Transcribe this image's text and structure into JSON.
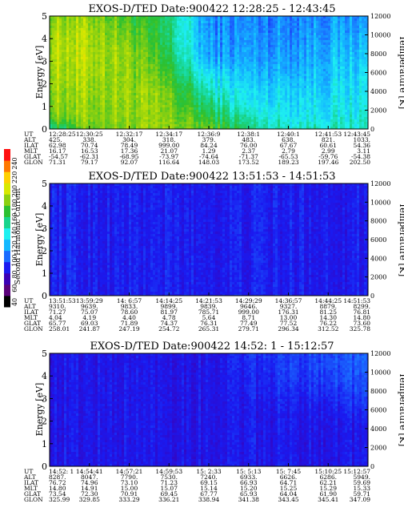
{
  "colorbar": {
    "label": "Second Harmonic Current",
    "ticks": [
      "40",
      "60",
      "80",
      "100",
      "120",
      "140",
      "160",
      "180",
      "200",
      "220",
      "240"
    ],
    "colors": [
      "#000000",
      "#5a007a",
      "#3b00b5",
      "#1a1af0",
      "#1a6cff",
      "#14b8ff",
      "#1ef0f0",
      "#18d48c",
      "#2cc030",
      "#8cd010",
      "#d8e800",
      "#ffd000",
      "#ff7800",
      "#ff1010"
    ]
  },
  "row_labels": [
    "UT",
    "ALT",
    "ILAT",
    "MLT",
    "GLAT",
    "GLON"
  ],
  "panels": [
    {
      "title": "EXOS-D/TED  Date:900422  12:28:25 - 12:43:45",
      "ylabel": "Energy [eV]",
      "y2label": "Temperature [K]",
      "yticks": [
        "0",
        "1",
        "2",
        "3",
        "4",
        "5"
      ],
      "y2ticks": [
        "0",
        "2000",
        "4000",
        "6000",
        "8000",
        "10000",
        "12000"
      ],
      "columns": [
        [
          "12:28:25",
          "425.",
          "62.98",
          "16.17",
          "-54.57",
          "71.31"
        ],
        [
          "12:30:25",
          "338.",
          "70.74",
          "16.53",
          "-62.31",
          "79.17"
        ],
        [
          "12:32:17",
          "304.",
          "78.49",
          "17.36",
          "-68.95",
          "92.07"
        ],
        [
          "12:34:17",
          "318.",
          "999.00",
          "21.07",
          "-73.97",
          "116.64"
        ],
        [
          "12:36:9",
          "379.",
          "84.24",
          "1.29",
          "-74.64",
          "148.03"
        ],
        [
          "12:38:1",
          "483.",
          "76.00",
          "2.37",
          "-71.37",
          "173.52"
        ],
        [
          "12:40:1",
          "638.",
          "67.67",
          "2.79",
          "-65.53",
          "189.23"
        ],
        [
          "12:41:53",
          "821.",
          "60.61",
          "2.99",
          "-59.76",
          "197.46"
        ],
        [
          "12:43:45",
          "1033.",
          "54.36",
          "3.11",
          "-54.38",
          "202.50"
        ]
      ]
    },
    {
      "title": "EXOS-D/TED  Date:900422  13:51:53 - 14:51:53",
      "ylabel": "Energy [eV]",
      "y2label": "Temperature [K]",
      "yticks": [
        "0",
        "1",
        "2",
        "3",
        "4",
        "5"
      ],
      "y2ticks": [
        "0",
        "2000",
        "4000",
        "6000",
        "8000",
        "10000",
        "12000"
      ],
      "columns": [
        [
          "13:51:53",
          "9310.",
          "71.27",
          "4.04",
          "65.77",
          "258.01"
        ],
        [
          "13:59:29",
          "9639.",
          "75.07",
          "4.19",
          "69.03",
          "241.87"
        ],
        [
          "14: 6:57",
          "9833.",
          "78.60",
          "4.40",
          "71.89",
          "247.19"
        ],
        [
          "14:14:25",
          "9899.",
          "81.97",
          "4.78",
          "74.37",
          "254.72"
        ],
        [
          "14:21:53",
          "9839.",
          "785.71",
          "5.64",
          "76.31",
          "265.31"
        ],
        [
          "14:29:29",
          "9646.",
          "999.00",
          "8.71",
          "77.49",
          "279.71"
        ],
        [
          "14:36:57",
          "9327.",
          "176.31",
          "13.00",
          "77.52",
          "296.34"
        ],
        [
          "14:44:25",
          "8879.",
          "81.25",
          "14.30",
          "76.22",
          "312.52"
        ],
        [
          "14:51:53",
          "8299.",
          "76.81",
          "14.80",
          "73.60",
          "325.78"
        ]
      ]
    },
    {
      "title": "EXOS-D/TED  Date:900422  14:52: 1 - 15:12:57",
      "ylabel": "Energy [eV]",
      "y2label": "Temperature [K]",
      "yticks": [
        "0",
        "1",
        "2",
        "3",
        "4",
        "5"
      ],
      "y2ticks": [
        "0",
        "2000",
        "4000",
        "6000",
        "8000",
        "10000",
        "12000"
      ],
      "columns": [
        [
          "14:52: 1",
          "8287.",
          "76.72",
          "14.80",
          "73.54",
          "325.99"
        ],
        [
          "14:54:41",
          "8047.",
          "74.96",
          "14.91",
          "72.30",
          "329.85"
        ],
        [
          "14:57:21",
          "7790.",
          "73.10",
          "15.00",
          "70.91",
          "333.29"
        ],
        [
          "14:59:53",
          "7530.",
          "71.23",
          "15.07",
          "69.45",
          "336.21"
        ],
        [
          "15: 2:33",
          "7240.",
          "69.15",
          "15.14",
          "67.77",
          "338.94"
        ],
        [
          "15: 5:13",
          "6933.",
          "66.93",
          "15.20",
          "65.93",
          "341.38"
        ],
        [
          "15: 7:45",
          "6626.",
          "64.71",
          "15.25",
          "64.04",
          "343.45"
        ],
        [
          "15:10:25",
          "6286.",
          "62.21",
          "15.29",
          "61.90",
          "345.41"
        ],
        [
          "15:12:57",
          "5949.",
          "59.69",
          "15.33",
          "59.71",
          "347.09"
        ]
      ]
    }
  ],
  "chart_data": [
    {
      "type": "heatmap",
      "title": "EXOS-D/TED  Date:900422  12:28:25 - 12:43:45",
      "ylabel": "Energy [eV]",
      "y2label": "Temperature [K]",
      "ylim": [
        0,
        5
      ],
      "y2lim": [
        0,
        12000
      ],
      "zlabel": "Second Harmonic Current",
      "zlim": [
        40,
        240
      ],
      "x": [
        "12:28:25",
        "12:30:25",
        "12:32:17",
        "12:34:17",
        "12:36:9",
        "12:38:1",
        "12:40:1",
        "12:41:53",
        "12:43:45"
      ],
      "y": [
        0.25,
        0.75,
        1.25,
        1.75,
        2.25,
        2.75,
        3.25,
        3.75,
        4.25,
        4.75
      ],
      "z": [
        [
          150,
          175,
          180,
          182,
          184,
          186,
          187,
          186,
          184,
          180
        ],
        [
          175,
          180,
          180,
          182,
          184,
          186,
          187,
          186,
          184,
          180
        ],
        [
          178,
          178,
          180,
          182,
          180,
          180,
          180,
          175,
          170,
          166
        ],
        [
          178,
          176,
          174,
          172,
          166,
          160,
          155,
          150,
          150,
          150
        ],
        [
          170,
          160,
          150,
          140,
          130,
          120,
          110,
          110,
          108,
          108
        ],
        [
          150,
          140,
          130,
          125,
          120,
          115,
          112,
          110,
          108,
          108
        ],
        [
          140,
          132,
          128,
          125,
          120,
          115,
          112,
          110,
          108,
          108
        ],
        [
          140,
          132,
          128,
          125,
          122,
          120,
          118,
          115,
          112,
          110
        ],
        [
          140,
          136,
          132,
          130,
          128,
          125,
          120,
          116,
          112,
          110
        ],
        [
          136,
          132,
          130,
          128,
          126,
          122,
          118,
          114,
          110,
          110
        ]
      ]
    },
    {
      "type": "heatmap",
      "title": "EXOS-D/TED  Date:900422  13:51:53 - 14:51:53",
      "ylabel": "Energy [eV]",
      "y2label": "Temperature [K]",
      "ylim": [
        0,
        5
      ],
      "y2lim": [
        0,
        12000
      ],
      "zlabel": "Second Harmonic Current",
      "zlim": [
        40,
        240
      ],
      "x": [
        "13:51:53",
        "13:59:29",
        "14: 6:57",
        "14:14:25",
        "14:21:53",
        "14:29:29",
        "14:36:57",
        "14:44:25",
        "14:51:53"
      ],
      "y": [
        0.25,
        0.75,
        1.25,
        1.75,
        2.25,
        2.75,
        3.25,
        3.75,
        4.25,
        4.75
      ],
      "z": [
        [
          88,
          88,
          88,
          88,
          88,
          88,
          88,
          88,
          88,
          88
        ],
        [
          86,
          86,
          86,
          86,
          86,
          86,
          86,
          86,
          86,
          86
        ],
        [
          86,
          86,
          86,
          86,
          86,
          86,
          86,
          86,
          86,
          86
        ],
        [
          86,
          86,
          86,
          86,
          86,
          86,
          86,
          86,
          86,
          86
        ],
        [
          86,
          86,
          86,
          86,
          86,
          86,
          86,
          86,
          86,
          86
        ],
        [
          86,
          86,
          86,
          86,
          86,
          86,
          86,
          86,
          86,
          86
        ],
        [
          86,
          86,
          86,
          86,
          86,
          86,
          86,
          86,
          86,
          86
        ],
        [
          86,
          86,
          86,
          86,
          86,
          86,
          86,
          86,
          86,
          86
        ],
        [
          86,
          86,
          86,
          86,
          86,
          86,
          86,
          86,
          86,
          86
        ],
        [
          86,
          86,
          86,
          86,
          86,
          86,
          86,
          86,
          86,
          86
        ]
      ]
    },
    {
      "type": "heatmap",
      "title": "EXOS-D/TED  Date:900422  14:52: 1 - 15:12:57",
      "ylabel": "Energy [eV]",
      "y2label": "Temperature [K]",
      "ylim": [
        0,
        5
      ],
      "y2lim": [
        0,
        12000
      ],
      "zlabel": "Second Harmonic Current",
      "zlim": [
        40,
        240
      ],
      "x": [
        "14:52: 1",
        "14:54:41",
        "14:57:21",
        "14:59:53",
        "15: 2:33",
        "15: 5:13",
        "15: 7:45",
        "15:10:25",
        "15:12:57"
      ],
      "y": [
        0.25,
        0.75,
        1.25,
        1.75,
        2.25,
        2.75,
        3.25,
        3.75,
        4.25,
        4.75
      ],
      "z": [
        [
          84,
          84,
          84,
          84,
          84,
          84,
          84,
          84,
          84,
          84
        ],
        [
          84,
          84,
          84,
          84,
          84,
          84,
          84,
          84,
          84,
          84
        ],
        [
          84,
          84,
          84,
          84,
          84,
          84,
          84,
          84,
          84,
          84
        ],
        [
          84,
          84,
          84,
          84,
          84,
          84,
          84,
          84,
          84,
          84
        ],
        [
          84,
          84,
          84,
          84,
          84,
          84,
          84,
          84,
          84,
          84
        ],
        [
          84,
          84,
          84,
          84,
          84,
          84,
          86,
          86,
          88,
          88
        ],
        [
          84,
          84,
          84,
          84,
          84,
          86,
          88,
          90,
          92,
          92
        ],
        [
          84,
          84,
          84,
          84,
          86,
          88,
          92,
          94,
          96,
          96
        ],
        [
          84,
          84,
          84,
          84,
          86,
          90,
          94,
          96,
          98,
          98
        ],
        [
          84,
          84,
          84,
          84,
          86,
          90,
          94,
          96,
          98,
          98
        ]
      ]
    }
  ]
}
